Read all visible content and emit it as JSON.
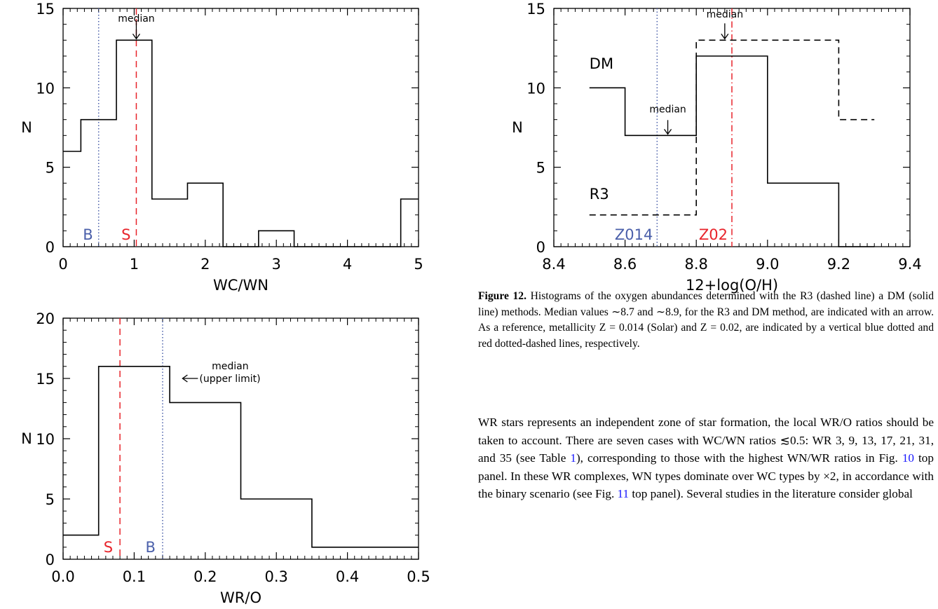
{
  "chart_data": [
    {
      "id": "top-left",
      "type": "histogram",
      "xlabel": "WC/WN",
      "ylabel": "N",
      "xlim": [
        0,
        5
      ],
      "ylim": [
        0,
        15
      ],
      "xticks": [
        0,
        1,
        2,
        3,
        4,
        5
      ],
      "yticks": [
        0,
        5,
        10,
        15
      ],
      "bins": [
        {
          "x0": 0.0,
          "x1": 0.25,
          "y": 6
        },
        {
          "x0": 0.25,
          "x1": 0.75,
          "y": 8
        },
        {
          "x0": 0.75,
          "x1": 1.25,
          "y": 13
        },
        {
          "x0": 1.25,
          "x1": 1.75,
          "y": 3
        },
        {
          "x0": 1.75,
          "x1": 2.25,
          "y": 4
        },
        {
          "x0": 2.25,
          "x1": 2.75,
          "y": 0
        },
        {
          "x0": 2.75,
          "x1": 3.25,
          "y": 1
        },
        {
          "x0": 3.25,
          "x1": 4.75,
          "y": 0
        },
        {
          "x0": 4.75,
          "x1": 5.0,
          "y": 3
        }
      ],
      "vlines": [
        {
          "x": 0.5,
          "label": "B",
          "color": "#4a5faa",
          "style": "dotted"
        },
        {
          "x": 1.03,
          "label": "S",
          "color": "#e8242b",
          "style": "dashed"
        }
      ],
      "annotation": {
        "text": "median",
        "x": 1.03,
        "y": 13
      }
    },
    {
      "id": "top-right",
      "type": "histogram",
      "xlabel": "12+log(O/H)",
      "ylabel": "N",
      "xlim": [
        8.4,
        9.4
      ],
      "ylim": [
        0,
        15
      ],
      "xticks": [
        8.4,
        8.6,
        8.8,
        9.0,
        9.2,
        9.4
      ],
      "xtick_labels": [
        "8.4",
        "8.6",
        "8.8",
        "9.0",
        "9.2",
        "9.4"
      ],
      "yticks": [
        0,
        5,
        10,
        15
      ],
      "series": [
        {
          "name": "DM",
          "style": "solid",
          "bins": [
            {
              "x0": 8.5,
              "x1": 8.6,
              "y": 10
            },
            {
              "x0": 8.6,
              "x1": 8.8,
              "y": 7
            },
            {
              "x0": 8.8,
              "x1": 9.0,
              "y": 12
            },
            {
              "x0": 9.0,
              "x1": 9.2,
              "y": 4
            },
            {
              "x0": 9.2,
              "x1": 9.3,
              "y": 0
            }
          ]
        },
        {
          "name": "R3",
          "style": "dashed",
          "bins": [
            {
              "x0": 8.5,
              "x1": 8.8,
              "y": 2
            },
            {
              "x0": 8.8,
              "x1": 9.2,
              "y": 13
            },
            {
              "x0": 9.2,
              "x1": 9.3,
              "y": 8
            }
          ]
        }
      ],
      "vlines": [
        {
          "x": 8.69,
          "label": "Z014",
          "color": "#4a5faa",
          "style": "dotted"
        },
        {
          "x": 8.9,
          "label": "Z02",
          "color": "#e8242b",
          "style": "dashdot"
        }
      ],
      "annotations": [
        {
          "text": "median",
          "x": 8.72,
          "y": 7
        },
        {
          "text": "median",
          "x": 8.88,
          "y": 13
        }
      ]
    },
    {
      "id": "bottom-left",
      "type": "histogram",
      "xlabel": "WR/O",
      "ylabel": "N",
      "xlim": [
        0.0,
        0.5
      ],
      "ylim": [
        0,
        20
      ],
      "xticks": [
        0.0,
        0.1,
        0.2,
        0.3,
        0.4,
        0.5
      ],
      "xtick_labels": [
        "0.0",
        "0.1",
        "0.2",
        "0.3",
        "0.4",
        "0.5"
      ],
      "yticks": [
        0,
        5,
        10,
        15,
        20
      ],
      "bins": [
        {
          "x0": 0.0,
          "x1": 0.05,
          "y": 2
        },
        {
          "x0": 0.05,
          "x1": 0.15,
          "y": 16
        },
        {
          "x0": 0.15,
          "x1": 0.25,
          "y": 13
        },
        {
          "x0": 0.25,
          "x1": 0.35,
          "y": 5
        },
        {
          "x0": 0.35,
          "x1": 0.5,
          "y": 1
        }
      ],
      "vlines": [
        {
          "x": 0.08,
          "label": "S",
          "color": "#e8242b",
          "style": "dashed"
        },
        {
          "x": 0.14,
          "label": "B",
          "color": "#4a5faa",
          "style": "dotted"
        }
      ],
      "annotation": {
        "text": "median\n(upper limit)",
        "x": 0.17,
        "y": 15
      }
    }
  ],
  "caption": {
    "label": "Figure 12.",
    "text": "Histograms of the oxygen abundances determined with the R3 (dashed line) a DM (solid line) methods. Median values ∼8.7 and ∼8.9, for the R3 and DM method, are indicated with an arrow. As a reference, metallicity Z = 0.014 (Solar) and Z = 0.02, are indicated by a vertical blue dotted and red dotted-dashed lines, respectively."
  },
  "body": {
    "p1": "WR stars represents an independent zone of star formation, the local WR/O ratios should be taken to account. There are seven cases with WC/WN ratios ≲0.5: WR 3, 9, 13, 17, 21, 31, and 35 (see Table ",
    "ref_table": "1",
    "p2": "), corresponding to those with the highest WN/WR ratios in Fig. ",
    "ref_fig10": "10",
    "p3": " top panel. In these WR complexes, WN types dominate over WC types by ×2, in accordance with the binary scenario (see Fig. ",
    "ref_fig11": "11",
    "p4": " top panel). Several studies in the literature consider global"
  }
}
